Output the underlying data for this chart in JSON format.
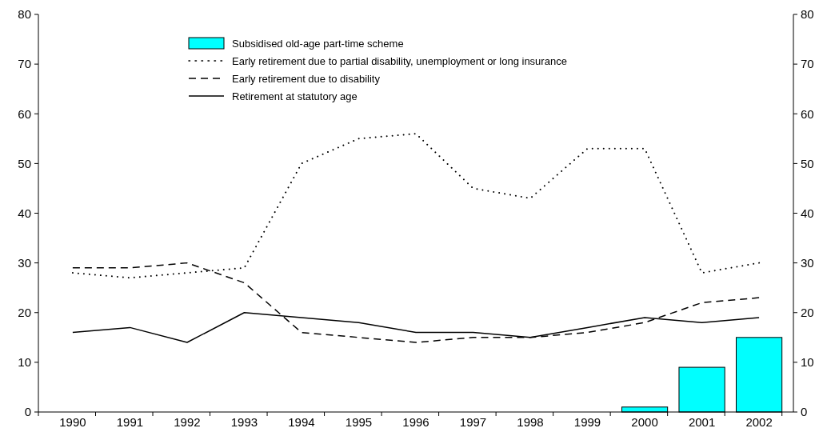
{
  "chart_data": {
    "type": "line",
    "categories": [
      "1990",
      "1991",
      "1992",
      "1993",
      "1994",
      "1995",
      "1996",
      "1997",
      "1998",
      "1999",
      "2000",
      "2001",
      "2002"
    ],
    "series": [
      {
        "name": "Subsidised old-age part-time scheme",
        "type": "bar",
        "color": "#00ffff",
        "values": [
          null,
          null,
          null,
          null,
          null,
          null,
          null,
          null,
          null,
          null,
          1,
          9,
          15
        ]
      },
      {
        "name": "Early retirement due to partial disability, unemployment or long insurance",
        "line_style": "dotted",
        "color": "#000000",
        "values": [
          28,
          27,
          28,
          29,
          50,
          55,
          56,
          45,
          43,
          53,
          53,
          28,
          30
        ]
      },
      {
        "name": "Early retirement due to disability",
        "line_style": "dashed",
        "color": "#000000",
        "values": [
          29,
          29,
          30,
          26,
          16,
          15,
          14,
          15,
          15,
          16,
          18,
          22,
          23
        ]
      },
      {
        "name": "Retirement at statutory age",
        "line_style": "solid",
        "color": "#000000",
        "values": [
          16,
          17,
          14,
          20,
          19,
          18,
          16,
          16,
          15,
          17,
          19,
          18,
          19
        ]
      }
    ],
    "ylim": [
      0,
      80
    ],
    "yticks": [
      0,
      10,
      20,
      30,
      40,
      50,
      60,
      70,
      80
    ],
    "y2lim": [
      0,
      80
    ],
    "y2ticks": [
      0,
      10,
      20,
      30,
      40,
      50,
      60,
      70,
      80
    ],
    "legend": "top",
    "grid": false,
    "marker": "none"
  }
}
